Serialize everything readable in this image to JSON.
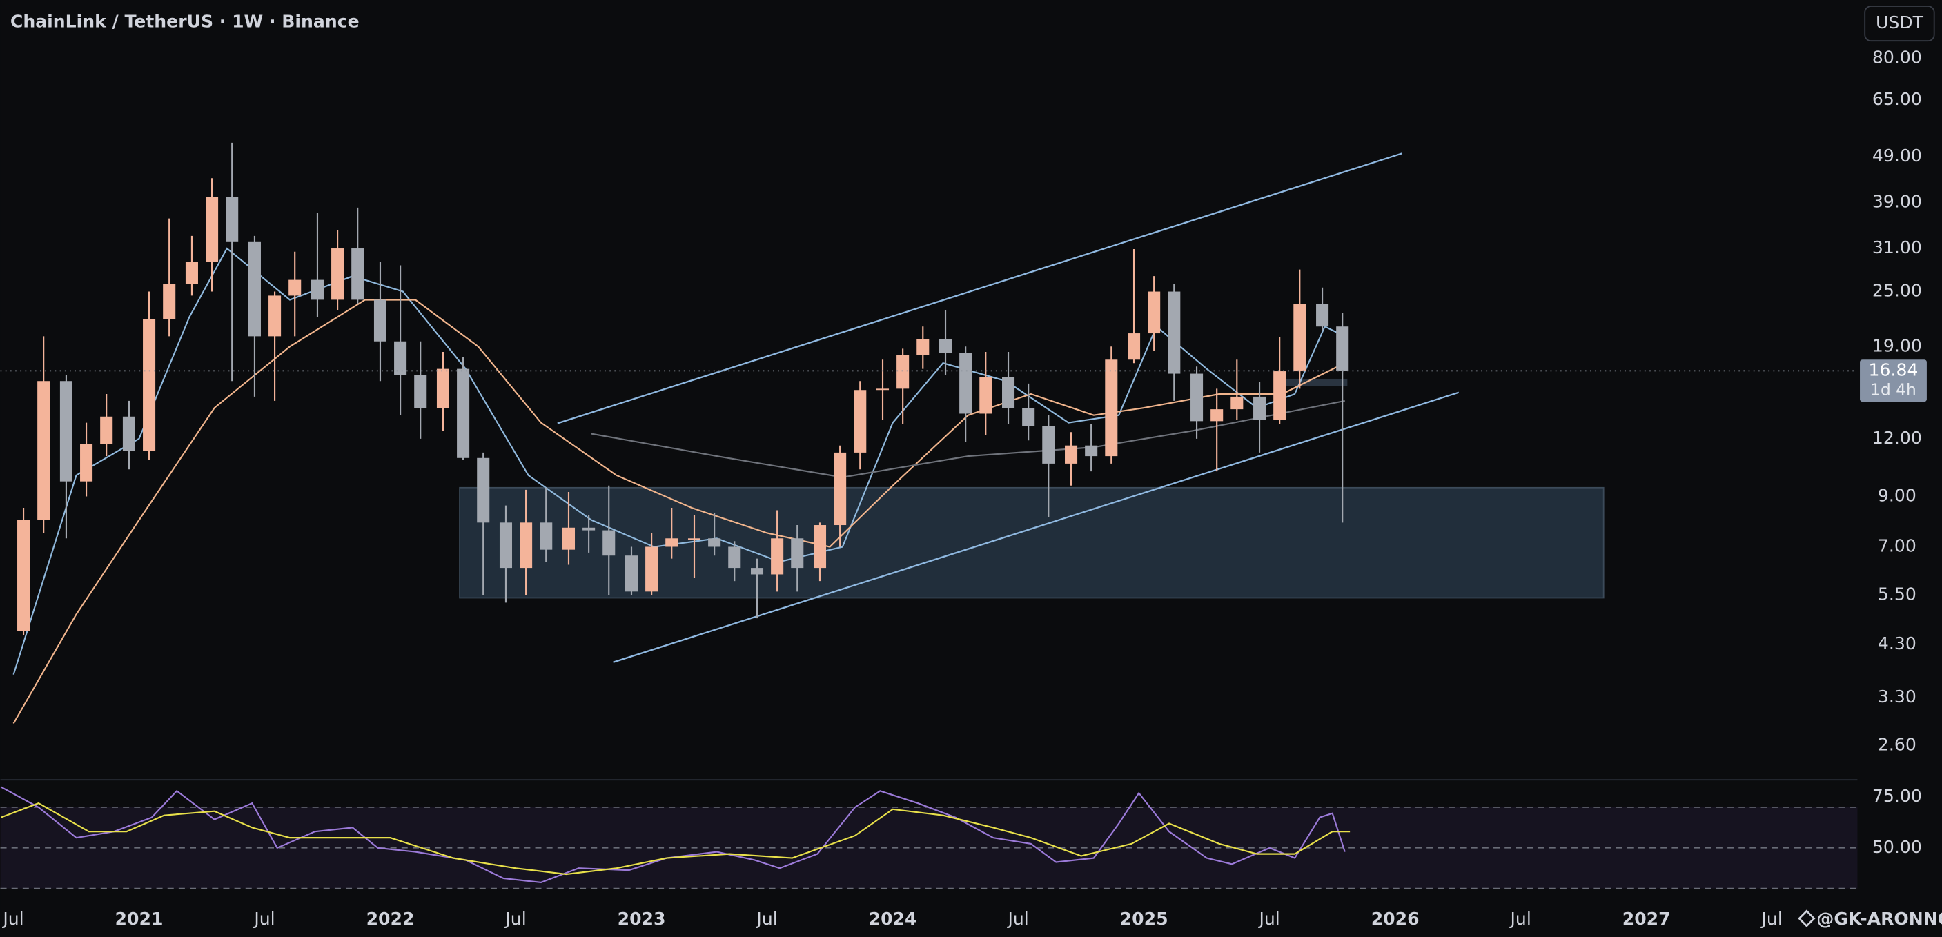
{
  "chart_data": [
    {
      "type": "candlestick",
      "title": "ChainLink / TetherUS · 1W · Binance",
      "currency_button": "USDT",
      "log_scale": true,
      "up_color": "#f4b49a",
      "down_color": "#a3a8b0",
      "x": [
        2020.54,
        2020.62,
        2020.71,
        2020.79,
        2020.87,
        2020.96,
        2021.04,
        2021.12,
        2021.21,
        2021.29,
        2021.37,
        2021.46,
        2021.54,
        2021.62,
        2021.71,
        2021.79,
        2021.87,
        2021.96,
        2022.04,
        2022.12,
        2022.21,
        2022.29,
        2022.37,
        2022.46,
        2022.54,
        2022.62,
        2022.71,
        2022.79,
        2022.87,
        2022.96,
        2023.04,
        2023.12,
        2023.21,
        2023.29,
        2023.37,
        2023.46,
        2023.54,
        2023.62,
        2023.71,
        2023.79,
        2023.87,
        2023.96,
        2024.04,
        2024.12,
        2024.21,
        2024.29,
        2024.37,
        2024.46,
        2024.54,
        2024.62,
        2024.71,
        2024.79,
        2024.87,
        2024.96,
        2025.04,
        2025.12,
        2025.21,
        2025.29,
        2025.37,
        2025.46,
        2025.54,
        2025.62,
        2025.71,
        2025.79
      ],
      "open": [
        4.6,
        8.0,
        16.0,
        9.7,
        11.7,
        13.4,
        11.3,
        21.8,
        26.0,
        29.0,
        40.0,
        32.0,
        20.0,
        24.5,
        26.5,
        24.0,
        31.0,
        24.0,
        19.5,
        16.5,
        14.0,
        17.0,
        10.9,
        7.9,
        6.3,
        7.9,
        6.9,
        7.7,
        7.6,
        6.7,
        5.6,
        7.0,
        7.3,
        7.3,
        7.0,
        6.3,
        6.1,
        7.3,
        6.3,
        7.8,
        11.2,
        15.3,
        15.4,
        18.2,
        19.7,
        18.4,
        13.6,
        16.3,
        14.0,
        12.8,
        10.6,
        11.6,
        11.0,
        17.8,
        20.3,
        25.0,
        16.6,
        13.1,
        13.9,
        14.8,
        13.2,
        16.8,
        23.5,
        21.0
      ],
      "high": [
        8.5,
        20.0,
        16.5,
        13.0,
        15.0,
        14.5,
        25.0,
        36.0,
        33.0,
        44.0,
        52.5,
        33.0,
        25.0,
        30.5,
        37.0,
        34.0,
        38.0,
        29.0,
        28.5,
        19.5,
        18.5,
        18.0,
        11.2,
        8.6,
        9.3,
        9.4,
        9.2,
        8.2,
        9.5,
        7.0,
        7.5,
        8.5,
        8.2,
        8.3,
        7.2,
        6.6,
        8.4,
        7.8,
        7.9,
        11.6,
        16.0,
        17.8,
        18.8,
        21.0,
        22.8,
        19.0,
        18.5,
        18.5,
        15.8,
        13.5,
        12.4,
        12.9,
        19.0,
        30.9,
        27.0,
        26.0,
        17.2,
        15.4,
        17.8,
        15.9,
        19.9,
        27.9,
        25.5,
        22.5
      ],
      "low": [
        4.5,
        7.5,
        7.3,
        9.0,
        11.0,
        10.3,
        10.8,
        20.0,
        24.5,
        25.0,
        16.0,
        14.8,
        14.5,
        20.0,
        22.0,
        22.8,
        23.5,
        16.0,
        13.5,
        12.0,
        12.5,
        10.8,
        5.5,
        5.3,
        5.5,
        6.5,
        6.4,
        6.8,
        5.5,
        5.5,
        5.5,
        6.6,
        6.0,
        6.7,
        5.9,
        4.9,
        5.6,
        5.6,
        5.9,
        7.0,
        10.3,
        13.2,
        12.9,
        17.0,
        16.5,
        11.8,
        12.2,
        12.9,
        11.9,
        8.1,
        9.5,
        10.2,
        10.6,
        17.5,
        18.6,
        14.5,
        12.0,
        10.2,
        13.2,
        11.2,
        12.9,
        15.4,
        20.6,
        7.9
      ],
      "close": [
        8.0,
        16.0,
        9.7,
        11.7,
        13.4,
        11.3,
        21.8,
        26.0,
        29.0,
        40.0,
        32.0,
        20.0,
        24.5,
        26.5,
        24.0,
        31.0,
        24.0,
        19.5,
        16.5,
        14.0,
        17.0,
        10.9,
        7.9,
        6.3,
        7.9,
        6.9,
        7.7,
        7.6,
        6.7,
        5.6,
        7.0,
        7.3,
        7.3,
        7.0,
        6.3,
        6.1,
        7.3,
        6.3,
        7.8,
        11.2,
        15.3,
        15.4,
        18.2,
        19.7,
        18.4,
        13.6,
        16.3,
        14.0,
        12.8,
        10.6,
        11.6,
        11.0,
        17.8,
        20.3,
        25.0,
        16.6,
        13.1,
        13.9,
        14.8,
        13.2,
        16.8,
        23.5,
        21.0,
        16.84
      ],
      "last_countdown": "1d 4h",
      "series": [
        {
          "color": "#8fb8dc",
          "x": [
            2020.5,
            2020.75,
            2021.0,
            2021.2,
            2021.35,
            2021.6,
            2021.85,
            2022.05,
            2022.3,
            2022.55,
            2022.8,
            2023.05,
            2023.3,
            2023.55,
            2023.8,
            2024.0,
            2024.2,
            2024.45,
            2024.7,
            2024.9,
            2025.05,
            2025.25,
            2025.45,
            2025.6,
            2025.72,
            2025.8
          ],
          "values": [
            3.7,
            10.0,
            12.0,
            22.0,
            31.0,
            24.0,
            27.0,
            25.0,
            17.0,
            10.0,
            8.0,
            7.0,
            7.3,
            6.5,
            7.0,
            13.0,
            17.5,
            16.0,
            13.0,
            13.5,
            21.0,
            17.0,
            14.0,
            15.0,
            21.0,
            20.0
          ]
        },
        {
          "color": "#f0b48c",
          "x": [
            2020.5,
            2020.75,
            2021.0,
            2021.3,
            2021.6,
            2021.9,
            2022.1,
            2022.35,
            2022.6,
            2022.9,
            2023.2,
            2023.5,
            2023.75,
            2024.0,
            2024.3,
            2024.55,
            2024.8,
            2025.0,
            2025.3,
            2025.55,
            2025.8
          ],
          "values": [
            2.9,
            5.0,
            8.0,
            14.0,
            19.0,
            24.0,
            24.0,
            19.0,
            13.0,
            10.0,
            8.5,
            7.5,
            7.0,
            9.5,
            13.5,
            15.0,
            13.5,
            14.0,
            15.0,
            15.0,
            17.5
          ]
        },
        {
          "color": "#6f737b",
          "x": [
            2022.8,
            2023.3,
            2023.8,
            2024.3,
            2024.8,
            2025.2,
            2025.8
          ],
          "values": [
            12.3,
            11.0,
            9.9,
            11.0,
            11.5,
            12.5,
            14.5
          ]
        }
      ],
      "xlim": [
        2020.448,
        2027.84
      ],
      "ylim": [
        2.19,
        107
      ],
      "xticks": [
        {
          "value": 2020.5,
          "label": "Jul"
        },
        2021,
        {
          "value": 2021.5,
          "label": "Jul"
        },
        2022,
        {
          "value": 2022.5,
          "label": "Jul"
        },
        2023,
        {
          "value": 2023.5,
          "label": "Jul"
        },
        2024,
        {
          "value": 2024.5,
          "label": "Jul"
        },
        2025,
        {
          "value": 2025.5,
          "label": "Jul"
        },
        2026,
        {
          "value": 2026.5,
          "label": "Jul"
        },
        2027,
        {
          "value": 2027.5,
          "label": "Jul"
        }
      ],
      "yticks": [
        {
          "value": 80,
          "label": "80.00"
        },
        {
          "value": 65,
          "label": "65.00"
        },
        {
          "value": 49,
          "label": "49.00"
        },
        {
          "value": 39,
          "label": "39.00"
        },
        {
          "value": 31,
          "label": "31.00"
        },
        {
          "value": 25,
          "label": "25.00"
        },
        {
          "value": 19,
          "label": "19.00"
        },
        {
          "value": 12,
          "label": "12.00"
        },
        {
          "value": 9,
          "label": "9.00"
        },
        {
          "value": 7,
          "label": "7.00"
        },
        {
          "value": 5.5,
          "label": "5.50"
        },
        {
          "value": 4.3,
          "label": "4.30"
        },
        {
          "value": 3.3,
          "label": "3.30"
        },
        {
          "value": 2.6,
          "label": "2.60"
        }
      ]
    },
    {
      "type": "line",
      "ylim": [
        25.6,
        83.5
      ],
      "yticks": [
        {
          "value": 75,
          "label": "75.00"
        },
        {
          "value": 50,
          "label": "50.00"
        }
      ],
      "levels": [
        70,
        50,
        30
      ],
      "band_color": "#7e57c2",
      "series": [
        {
          "color": "#9b7ad8",
          "x": [
            2020.45,
            2020.6,
            2020.75,
            2020.9,
            2021.05,
            2021.15,
            2021.3,
            2021.45,
            2021.55,
            2021.7,
            2021.85,
            2021.95,
            2022.1,
            2022.3,
            2022.45,
            2022.6,
            2022.75,
            2022.95,
            2023.1,
            2023.3,
            2023.45,
            2023.55,
            2023.7,
            2023.85,
            2023.95,
            2024.1,
            2024.25,
            2024.4,
            2024.55,
            2024.65,
            2024.8,
            2024.9,
            2024.98,
            2025.1,
            2025.25,
            2025.35,
            2025.5,
            2025.6,
            2025.7,
            2025.75,
            2025.8
          ],
          "values": [
            80,
            70,
            55,
            58,
            65,
            78,
            64,
            72,
            50,
            58,
            60,
            50,
            48,
            44,
            35,
            33,
            40,
            39,
            45,
            48,
            44,
            40,
            47,
            70,
            78,
            72,
            65,
            55,
            52,
            43,
            45,
            62,
            77,
            58,
            45,
            42,
            50,
            45,
            65,
            67,
            48
          ]
        },
        {
          "color": "#e8e04a",
          "x": [
            2020.45,
            2020.6,
            2020.8,
            2020.95,
            2021.1,
            2021.3,
            2021.45,
            2021.6,
            2021.8,
            2022.0,
            2022.25,
            2022.5,
            2022.7,
            2022.9,
            2023.1,
            2023.35,
            2023.6,
            2023.85,
            2024.0,
            2024.2,
            2024.4,
            2024.55,
            2024.75,
            2024.95,
            2025.1,
            2025.3,
            2025.45,
            2025.6,
            2025.75,
            2025.82
          ],
          "values": [
            65,
            72,
            58,
            58,
            66,
            68,
            60,
            55,
            55,
            55,
            45,
            40,
            37,
            40,
            45,
            47,
            45,
            56,
            69,
            66,
            60,
            55,
            46,
            52,
            62,
            52,
            47,
            47,
            58,
            58
          ]
        }
      ]
    }
  ],
  "watermark": "@GK-ARONNO"
}
